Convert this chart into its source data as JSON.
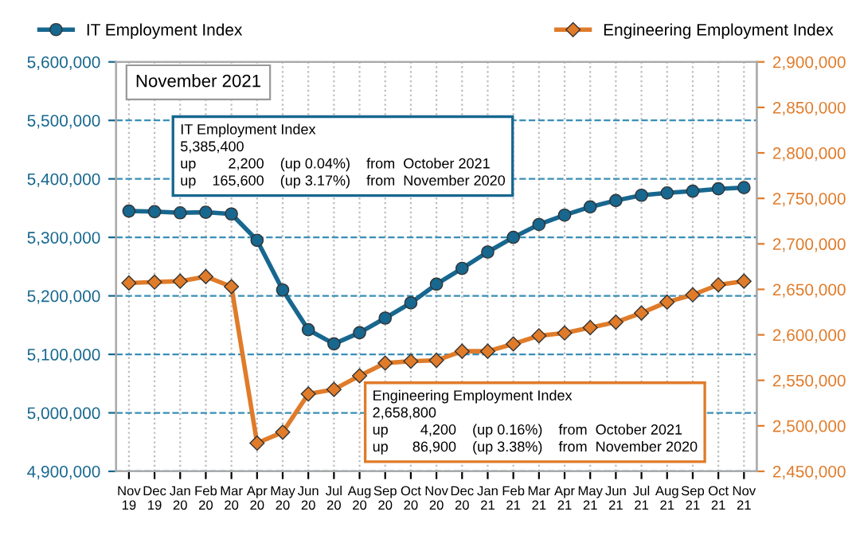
{
  "chart_data": {
    "type": "line",
    "categories": [
      "Nov\n19",
      "Dec\n19",
      "Jan\n20",
      "Feb\n20",
      "Mar\n20",
      "Apr\n20",
      "May\n20",
      "Jun\n20",
      "Jul\n20",
      "Aug\n20",
      "Sep\n20",
      "Oct\n20",
      "Nov\n20",
      "Dec\n20",
      "Jan\n21",
      "Feb\n21",
      "Mar\n21",
      "Apr\n21",
      "May\n21",
      "Jun\n21",
      "Jul\n21",
      "Aug\n21",
      "Sep\n21",
      "Oct\n21",
      "Nov\n21"
    ],
    "series": [
      {
        "name": "IT Employment Index",
        "color": "#17678f",
        "marker": "circle",
        "values": [
          5345000,
          5344000,
          5342000,
          5343000,
          5340000,
          5295000,
          5210000,
          5142000,
          5118000,
          5137000,
          5162000,
          5188000,
          5220000,
          5247000,
          5275000,
          5300000,
          5322000,
          5338000,
          5352000,
          5363000,
          5372000,
          5376000,
          5379000,
          5383000,
          5385000
        ]
      },
      {
        "name": "Engineering Employment Index",
        "color": "#e07b29",
        "marker": "diamond",
        "axis": "y2",
        "values": [
          2657000,
          2658000,
          2659000,
          2664000,
          2653000,
          2481000,
          2493000,
          2535000,
          2540000,
          2555000,
          2569000,
          2571000,
          2572000,
          2582000,
          2582000,
          2590000,
          2599000,
          2602000,
          2608000,
          2614000,
          2624000,
          2636000,
          2644000,
          2655000,
          2659000
        ]
      }
    ],
    "ylim": [
      4900000,
      5600000
    ],
    "yticks": [
      {
        "value": 4900000,
        "label": "4,900,000"
      },
      {
        "value": 5000000,
        "label": "5,000,000"
      },
      {
        "value": 5100000,
        "label": "5,100,000"
      },
      {
        "value": 5200000,
        "label": "5,200,000"
      },
      {
        "value": 5300000,
        "label": "5,300,000"
      },
      {
        "value": 5400000,
        "label": "5,400,000"
      },
      {
        "value": 5500000,
        "label": "5,500,000"
      },
      {
        "value": 5600000,
        "label": "5,600,000"
      }
    ],
    "y2lim": [
      2450000,
      2900000
    ],
    "y2ticks": [
      {
        "value": 2450000,
        "label": "2,450,000"
      },
      {
        "value": 2500000,
        "label": "2,500,000"
      },
      {
        "value": 2550000,
        "label": "2,550,000"
      },
      {
        "value": 2600000,
        "label": "2,600,000"
      },
      {
        "value": 2650000,
        "label": "2,650,000"
      },
      {
        "value": 2700000,
        "label": "2,700,000"
      },
      {
        "value": 2750000,
        "label": "2,750,000"
      },
      {
        "value": 2800000,
        "label": "2,800,000"
      },
      {
        "value": 2850000,
        "label": "2,850,000"
      },
      {
        "value": 2900000,
        "label": "2,900,000"
      }
    ],
    "grid": true,
    "legend": "top",
    "line_style": "solid",
    "annotations": [
      "November 2021",
      "IT Employment Index\n5,385,400\nup        2,200    (up 0.04%)    from  October 2021\nup    165,600    (up 3.17%)    from  November 2020",
      "Engineering Employment Index\n2,658,800\nup        4,200    (up 0.16%)    from  October 2021\nup      86,900    (up 3.38%)    from  November 2020"
    ]
  }
}
